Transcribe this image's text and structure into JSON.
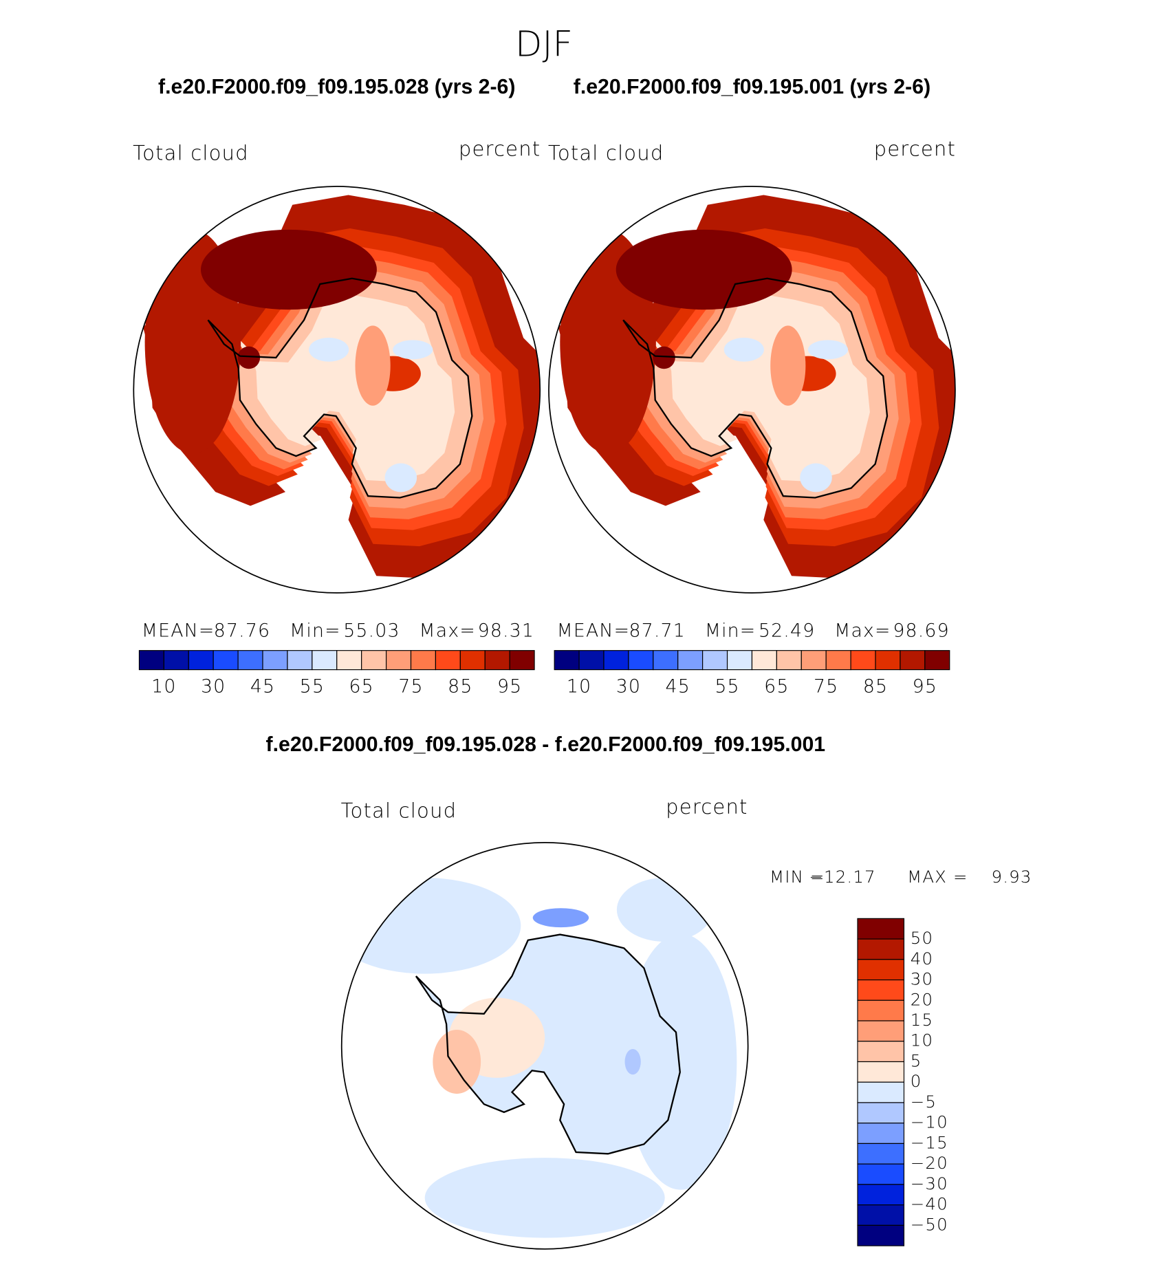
{
  "title": "DJF",
  "panels": [
    {
      "case": "f.e20.F2000.f09_f09.195.028 (yrs 2-6)",
      "variable": "Total cloud",
      "units": "percent",
      "stats": [
        {
          "label": "MEAN=",
          "value": "87.76"
        },
        {
          "label": "Min=",
          "value": "55.03"
        },
        {
          "label": "Max=",
          "value": "98.31"
        }
      ],
      "colorbar": {
        "colors": [
          "#000080",
          "#0010a8",
          "#0022dd",
          "#1a4cff",
          "#3d6fff",
          "#7c9fff",
          "#b0c8ff",
          "#daeaff",
          "#ffe8d8",
          "#ffc4a8",
          "#ff9e78",
          "#ff7a4a",
          "#ff4a1a",
          "#e03000",
          "#b31800",
          "#800000"
        ],
        "ticks": [
          10,
          30,
          45,
          55,
          65,
          75,
          85,
          95
        ]
      }
    },
    {
      "case": "f.e20.F2000.f09_f09.195.001 (yrs 2-6)",
      "variable": "Total cloud",
      "units": "percent",
      "stats": [
        {
          "label": "MEAN=",
          "value": "87.71"
        },
        {
          "label": "Min=",
          "value": "52.49"
        },
        {
          "label": "Max=",
          "value": "98.69"
        }
      ],
      "colorbar": {
        "colors": [
          "#000080",
          "#0010a8",
          "#0022dd",
          "#1a4cff",
          "#3d6fff",
          "#7c9fff",
          "#b0c8ff",
          "#daeaff",
          "#ffe8d8",
          "#ffc4a8",
          "#ff9e78",
          "#ff7a4a",
          "#ff4a1a",
          "#e03000",
          "#b31800",
          "#800000"
        ],
        "ticks": [
          10,
          30,
          45,
          55,
          65,
          75,
          85,
          95
        ]
      }
    }
  ],
  "difference": {
    "title": "f.e20.F2000.f09_f09.195.028 - f.e20.F2000.f09_f09.195.001",
    "variable": "Total cloud",
    "units": "percent",
    "stats": [
      {
        "label": "MIN =",
        "value": "−12.17"
      },
      {
        "label": "MAX =",
        "value": "9.93"
      }
    ],
    "colorbar": {
      "colors": [
        "#800000",
        "#b31800",
        "#e03000",
        "#ff4a1a",
        "#ff7a4a",
        "#ff9e78",
        "#ffc4a8",
        "#ffe8d8",
        "#daeaff",
        "#b0c8ff",
        "#7c9fff",
        "#3d6fff",
        "#1a4cff",
        "#0022dd",
        "#0010a8",
        "#000080"
      ],
      "ticks": [
        50,
        40,
        30,
        20,
        15,
        10,
        5,
        0,
        {
          "value": -5,
          "label": "−5"
        },
        {
          "value": -10,
          "label": "−10"
        },
        {
          "value": -15,
          "label": "−15"
        },
        {
          "value": -20,
          "label": "−20"
        },
        {
          "value": -30,
          "label": "−30"
        },
        {
          "value": -40,
          "label": "−40"
        },
        {
          "value": -50,
          "label": "−50"
        }
      ]
    }
  }
}
